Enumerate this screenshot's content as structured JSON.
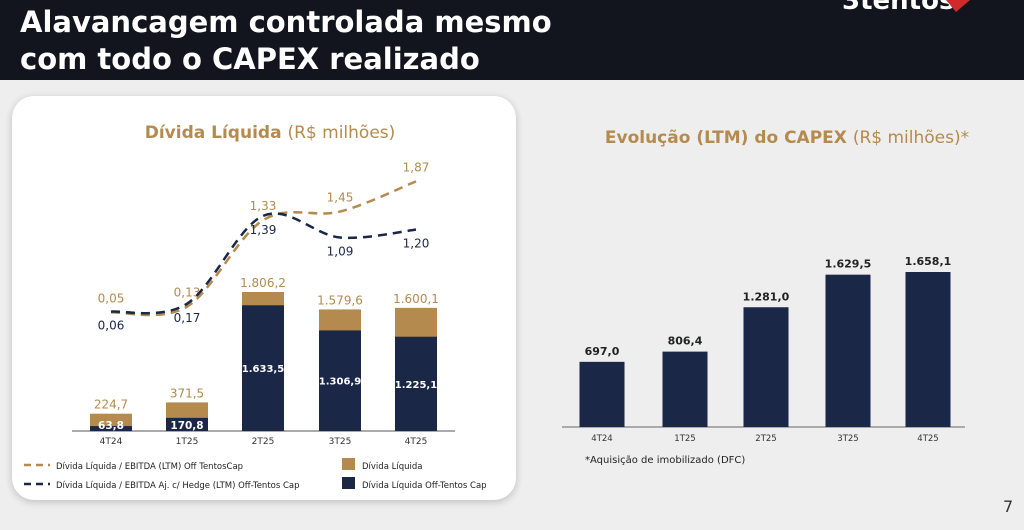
{
  "header": {
    "title_line1": "Alavancagem controlada mesmo",
    "title_line2": "com todo o CAPEX realizado",
    "logo": "3tentos"
  },
  "page_number": "7",
  "colors": {
    "gold": "#b48a4e",
    "navy": "#1b2747",
    "header": "#12151d"
  },
  "chart_data": [
    {
      "type": "bar",
      "title_bold": "Dívida Líquida",
      "title_unit": "(R$ milhões)",
      "categories": [
        "4T24",
        "1T25",
        "2T25",
        "3T25",
        "4T25"
      ],
      "series": [
        {
          "name": "Dívida Líquida",
          "kind": "bar",
          "values": [
            224.7,
            371.5,
            1806.2,
            1579.6,
            1600.1
          ],
          "labels": [
            "224,7",
            "371,5",
            "1.806,2",
            "1.579,6",
            "1.600,1"
          ]
        },
        {
          "name": "Dívida Líquida Off-Tentos Cap",
          "kind": "bar",
          "values": [
            63.8,
            170.8,
            1633.5,
            1306.9,
            1225.1
          ],
          "labels": [
            "63,8",
            "170,8",
            "1.633,5",
            "1.306,9",
            "1.225,1"
          ]
        },
        {
          "name": "Dívida Líquida / EBITDA (LTM) Off TentosCap",
          "kind": "line",
          "values": [
            0.05,
            0.13,
            1.33,
            1.45,
            1.87
          ],
          "labels": [
            "0,05",
            "0,13",
            "1,33",
            "1,45",
            "1,87"
          ]
        },
        {
          "name": "Dívida Líquida / EBITDA Aj. c/ Hedge (LTM) Off-Tentos Cap",
          "kind": "line",
          "values": [
            0.06,
            0.17,
            1.39,
            1.09,
            1.2
          ],
          "labels": [
            "0,06",
            "0,17",
            "1,39",
            "1,09",
            "1,20"
          ]
        }
      ],
      "legend": [
        "Dívida Líquida / EBITDA (LTM) Off TentosCap",
        "Dívida Líquida / EBITDA Aj. c/ Hedge (LTM) Off-Tentos Cap",
        "Dívida Líquida",
        "Dívida Líquida Off-Tentos Cap"
      ]
    },
    {
      "type": "bar",
      "title_bold": "Evolução (LTM) do CAPEX",
      "title_unit": "(R$ milhões)*",
      "categories": [
        "4T24",
        "1T25",
        "2T25",
        "3T25",
        "4T25"
      ],
      "values": [
        697.0,
        806.4,
        1281.0,
        1629.5,
        1658.1
      ],
      "labels": [
        "697,0",
        "806,4",
        "1.281,0",
        "1.629,5",
        "1.658,1"
      ],
      "footnote": "*Aquisição de imobilizado (DFC)"
    }
  ]
}
